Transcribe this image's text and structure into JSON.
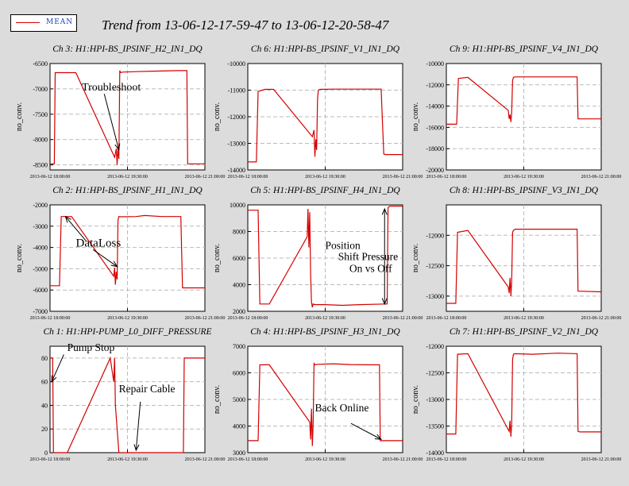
{
  "legend": {
    "label": "MEAN",
    "color": "#d40000"
  },
  "title": "Trend from 13-06-12-17-59-47 to 13-06-12-20-58-47",
  "x_ticks": [
    "2013-06-12 18:00:00",
    "2013-06-12 19:30:00",
    "2013-06-12 21:00:00"
  ],
  "ylabel": "no_conv.",
  "chart_data": [
    {
      "type": "line",
      "title": "Ch 3: H1:HPI-BS_IPSINF_H2_IN1_DQ",
      "ylabel": "no_conv.",
      "x_range": [
        0,
        180
      ],
      "ylim": [
        -8600,
        -6500
      ],
      "y_ticks": [
        "-6500",
        "-7000",
        "-7500",
        "-8000",
        "-8500"
      ],
      "series": [
        {
          "x": [
            0,
            5,
            6,
            30,
            75,
            77,
            78,
            79,
            80,
            81,
            82,
            84,
            100,
            120,
            150,
            159,
            160,
            162,
            180
          ],
          "y": [
            -8480,
            -8480,
            -6680,
            -6680,
            -8350,
            -8180,
            -8500,
            -8150,
            -8380,
            -6640,
            -6680,
            -6670,
            -6660,
            -6650,
            -6640,
            -6640,
            -8480,
            -8480,
            -8480
          ]
        }
      ]
    },
    {
      "type": "line",
      "title": "Ch 6: H1:HPI-BS_IPSINF_V1_IN1_DQ",
      "ylabel": "no_conv.",
      "x_range": [
        0,
        180
      ],
      "ylim": [
        -14000,
        -10000
      ],
      "y_ticks": [
        "-10000",
        "-11000",
        "-12000",
        "-13000",
        "-14000"
      ],
      "series": [
        {
          "x": [
            0,
            10,
            12,
            20,
            30,
            75,
            77,
            78,
            79,
            80,
            81,
            82,
            84,
            100,
            130,
            155,
            158,
            160,
            180
          ],
          "y": [
            -13700,
            -13700,
            -11050,
            -10970,
            -10970,
            -12750,
            -12500,
            -13500,
            -12850,
            -13250,
            -11350,
            -11000,
            -10970,
            -10960,
            -10960,
            -10960,
            -13400,
            -13420,
            -13420
          ]
        }
      ]
    },
    {
      "type": "line",
      "title": "Ch 9: H1:HPI-BS_IPSINF_V4_IN1_DQ",
      "ylabel": "no_conv.",
      "x_range": [
        0,
        180
      ],
      "ylim": [
        -20000,
        -10000
      ],
      "y_ticks": [
        "-10000",
        "-12000",
        "-14000",
        "-16000",
        "-18000",
        "-20000"
      ],
      "series": [
        {
          "x": [
            0,
            12,
            14,
            25,
            72,
            73,
            74,
            75,
            76,
            77,
            78,
            80,
            100,
            130,
            152,
            153,
            155,
            180
          ],
          "y": [
            -15700,
            -15700,
            -11400,
            -11300,
            -14400,
            -15200,
            -14800,
            -15500,
            -14600,
            -11600,
            -11300,
            -11250,
            -11250,
            -11250,
            -11250,
            -15200,
            -15200,
            -15200
          ]
        }
      ]
    },
    {
      "type": "line",
      "title": "Ch 2: H1:HPI-BS_IPSINF_H1_IN1_DQ",
      "ylabel": "no_conv.",
      "x_range": [
        0,
        180
      ],
      "ylim": [
        -7000,
        -2000
      ],
      "y_ticks": [
        "-2000",
        "-3000",
        "-4000",
        "-5000",
        "-6000",
        "-7000"
      ],
      "series": [
        {
          "x": [
            0,
            11,
            13,
            25,
            74,
            75,
            76,
            77,
            78,
            79,
            80,
            82,
            100,
            110,
            130,
            152,
            154,
            156,
            180
          ],
          "y": [
            -5800,
            -5800,
            -2550,
            -2550,
            -5350,
            -4950,
            -5750,
            -5150,
            -5500,
            -2700,
            -2550,
            -2560,
            -2550,
            -2500,
            -2550,
            -2550,
            -5900,
            -5900,
            -5900
          ]
        }
      ]
    },
    {
      "type": "line",
      "title": "Ch 5: H1:HPI-BS_IPSINF_H4_IN1_DQ",
      "ylabel": "no_conv.",
      "x_range": [
        0,
        180
      ],
      "ylim": [
        2000,
        10000
      ],
      "y_ticks": [
        "10000",
        "8000",
        "6000",
        "4000",
        "2000"
      ],
      "series": [
        {
          "x": [
            0,
            12,
            14,
            25,
            69,
            70,
            71,
            72,
            73,
            74,
            75,
            76,
            78,
            90,
            110,
            130,
            160,
            162,
            163,
            165,
            180
          ],
          "y": [
            9600,
            9600,
            2550,
            2550,
            7600,
            9700,
            6800,
            9450,
            4800,
            2700,
            2300,
            2550,
            2500,
            2500,
            2450,
            2500,
            2550,
            2550,
            9800,
            9900,
            9900
          ]
        }
      ]
    },
    {
      "type": "line",
      "title": "Ch 8: H1:HPI-BS_IPSINF_V3_IN1_DQ",
      "ylabel": "no_conv.",
      "x_range": [
        0,
        180
      ],
      "ylim": [
        -13250,
        -11500
      ],
      "y_ticks": [
        "-12000",
        "-12500",
        "-13000"
      ],
      "series": [
        {
          "x": [
            0,
            11,
            13,
            25,
            72,
            73,
            74,
            75,
            76,
            77,
            78,
            80,
            100,
            130,
            152,
            153,
            155,
            180
          ],
          "y": [
            -13120,
            -13120,
            -11950,
            -11920,
            -12850,
            -12950,
            -12700,
            -13000,
            -12750,
            -11950,
            -11920,
            -11900,
            -11900,
            -11900,
            -11900,
            -12920,
            -12920,
            -12930
          ]
        }
      ]
    },
    {
      "type": "line",
      "title": "Ch 1: H1:HPI-PUMP_L0_DIFF_PRESSURE",
      "ylabel": "",
      "x_range": [
        0,
        180
      ],
      "ylim": [
        0,
        90
      ],
      "y_ticks": [
        "80",
        "60",
        "40",
        "20",
        "0"
      ],
      "series": [
        {
          "x": [
            0,
            3,
            4,
            20,
            70,
            74,
            75,
            76,
            80,
            100,
            130,
            155,
            156,
            158,
            180
          ],
          "y": [
            80,
            80,
            0,
            0,
            80,
            60,
            80,
            40,
            0,
            0,
            0,
            0,
            80,
            80,
            80
          ]
        }
      ]
    },
    {
      "type": "line",
      "title": "Ch 4: H1:HPI-BS_IPSINF_H3_IN1_DQ",
      "ylabel": "no_conv.",
      "x_range": [
        0,
        180
      ],
      "ylim": [
        3000,
        7000
      ],
      "y_ticks": [
        "7000",
        "6000",
        "5000",
        "4000",
        "3000"
      ],
      "series": [
        {
          "x": [
            0,
            12,
            14,
            25,
            72,
            73,
            74,
            75,
            76,
            77,
            78,
            80,
            100,
            120,
            140,
            153,
            154,
            156,
            180
          ],
          "y": [
            3450,
            3450,
            6300,
            6300,
            4150,
            3500,
            4650,
            3250,
            4100,
            6350,
            6300,
            6320,
            6340,
            6310,
            6300,
            6300,
            3450,
            3450,
            3450
          ]
        }
      ]
    },
    {
      "type": "line",
      "title": "Ch 7: H1:HPI-BS_IPSINF_V2_IN1_DQ",
      "ylabel": "no_conv.",
      "x_range": [
        0,
        180
      ],
      "ylim": [
        -14000,
        -12000
      ],
      "y_ticks": [
        "-12000",
        "-12500",
        "-13000",
        "-13500",
        "-14000"
      ],
      "series": [
        {
          "x": [
            0,
            11,
            13,
            25,
            73,
            74,
            75,
            76,
            77,
            78,
            80,
            100,
            130,
            152,
            153,
            155,
            180
          ],
          "y": [
            -13650,
            -13650,
            -12150,
            -12140,
            -13600,
            -13400,
            -13700,
            -13450,
            -12250,
            -12150,
            -12140,
            -12150,
            -12130,
            -12140,
            -13600,
            -13610,
            -13610
          ]
        }
      ]
    }
  ],
  "annotations": {
    "troubleshoot": "Troubleshoot",
    "dataloss": "DataLoss",
    "position_1": "Position",
    "position_2": "Shift Pressure",
    "position_3": "On vs Off",
    "pump_stop": "Pump Stop",
    "repair_cable": "Repair Cable",
    "back_online": "Back Online"
  }
}
